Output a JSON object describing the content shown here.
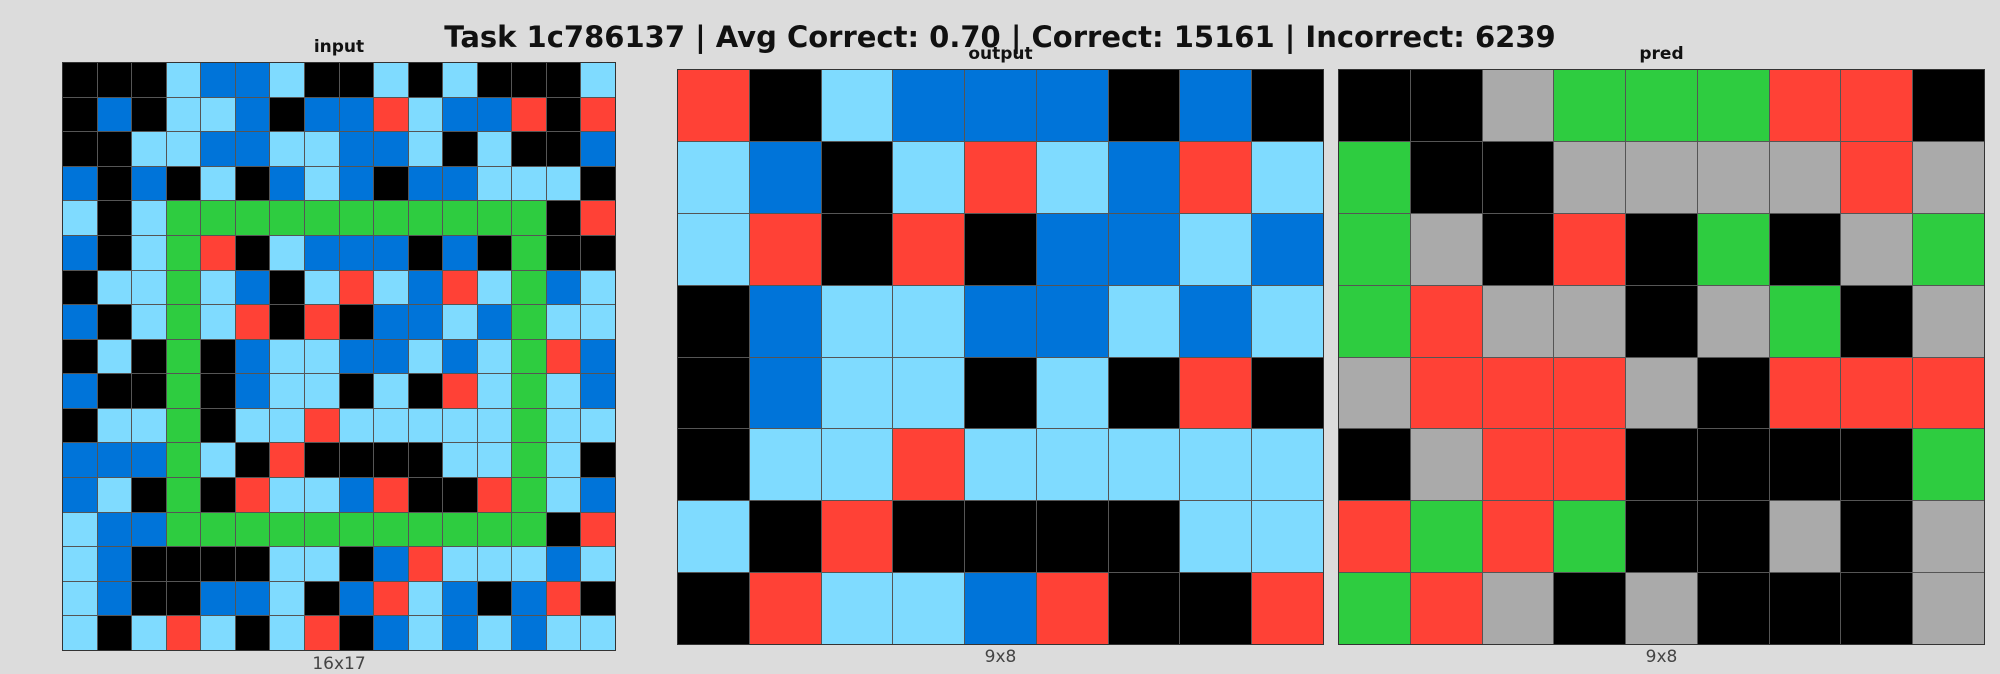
{
  "title": "Task 1c786137 | Avg Correct: 0.70 | Correct: 15161 | Incorrect: 6239",
  "colors": {
    "0": "#000000",
    "1": "#0074d9",
    "2": "#ff4136",
    "3": "#2ecc40",
    "5": "#aaaaaa",
    "8": "#7fdbff"
  },
  "panels": [
    {
      "label": "input",
      "dims": "16x17",
      "grid": [
        [
          0,
          0,
          0,
          8,
          1,
          1,
          8,
          0,
          0,
          8,
          0,
          8,
          0,
          0,
          0,
          8
        ],
        [
          0,
          1,
          0,
          8,
          8,
          1,
          0,
          1,
          1,
          2,
          8,
          1,
          1,
          2,
          0,
          2
        ],
        [
          0,
          0,
          8,
          8,
          1,
          1,
          8,
          8,
          1,
          1,
          8,
          0,
          8,
          0,
          0,
          1
        ],
        [
          1,
          0,
          1,
          0,
          8,
          0,
          1,
          8,
          1,
          0,
          1,
          1,
          8,
          8,
          8,
          0
        ],
        [
          8,
          0,
          8,
          3,
          3,
          3,
          3,
          3,
          3,
          3,
          3,
          3,
          3,
          3,
          0,
          2
        ],
        [
          1,
          0,
          8,
          3,
          2,
          0,
          8,
          1,
          1,
          1,
          0,
          1,
          0,
          3,
          0,
          0
        ],
        [
          0,
          8,
          8,
          3,
          8,
          1,
          0,
          8,
          2,
          8,
          1,
          2,
          8,
          3,
          1,
          8
        ],
        [
          1,
          0,
          8,
          3,
          8,
          2,
          0,
          2,
          0,
          1,
          1,
          8,
          1,
          3,
          8,
          8
        ],
        [
          0,
          8,
          0,
          3,
          0,
          1,
          8,
          8,
          1,
          1,
          8,
          1,
          8,
          3,
          2,
          1
        ],
        [
          1,
          0,
          0,
          3,
          0,
          1,
          8,
          8,
          0,
          8,
          0,
          2,
          8,
          3,
          8,
          1
        ],
        [
          0,
          8,
          8,
          3,
          0,
          8,
          8,
          2,
          8,
          8,
          8,
          8,
          8,
          3,
          8,
          8
        ],
        [
          1,
          1,
          1,
          3,
          8,
          0,
          2,
          0,
          0,
          0,
          0,
          8,
          8,
          3,
          8,
          0
        ],
        [
          1,
          8,
          0,
          3,
          0,
          2,
          8,
          8,
          1,
          2,
          0,
          0,
          2,
          3,
          8,
          1
        ],
        [
          8,
          1,
          1,
          3,
          3,
          3,
          3,
          3,
          3,
          3,
          3,
          3,
          3,
          3,
          0,
          2
        ],
        [
          8,
          1,
          0,
          0,
          0,
          0,
          8,
          8,
          0,
          1,
          2,
          8,
          8,
          8,
          1,
          8
        ],
        [
          8,
          1,
          0,
          0,
          1,
          1,
          8,
          0,
          1,
          2,
          8,
          1,
          0,
          1,
          2,
          0
        ],
        [
          8,
          0,
          8,
          2,
          8,
          0,
          8,
          2,
          0,
          1,
          8,
          1,
          8,
          1,
          8,
          8
        ]
      ]
    },
    {
      "label": "output",
      "dims": "9x8",
      "grid": [
        [
          2,
          0,
          8,
          1,
          1,
          1,
          0,
          1,
          0
        ],
        [
          8,
          1,
          0,
          8,
          2,
          8,
          1,
          2,
          8
        ],
        [
          8,
          2,
          0,
          2,
          0,
          1,
          1,
          8,
          1
        ],
        [
          0,
          1,
          8,
          8,
          1,
          1,
          8,
          1,
          8
        ],
        [
          0,
          1,
          8,
          8,
          0,
          8,
          0,
          2,
          0
        ],
        [
          0,
          8,
          8,
          2,
          8,
          8,
          8,
          8,
          8
        ],
        [
          8,
          0,
          2,
          0,
          0,
          0,
          0,
          8,
          8
        ],
        [
          0,
          2,
          8,
          8,
          1,
          2,
          0,
          0,
          2
        ]
      ]
    },
    {
      "label": "pred",
      "dims": "9x8",
      "grid": [
        [
          0,
          0,
          5,
          3,
          3,
          3,
          2,
          2,
          0
        ],
        [
          3,
          0,
          0,
          5,
          5,
          5,
          5,
          2,
          5
        ],
        [
          3,
          5,
          0,
          2,
          0,
          3,
          0,
          5,
          3
        ],
        [
          3,
          2,
          5,
          5,
          0,
          5,
          3,
          0,
          5
        ],
        [
          5,
          2,
          2,
          2,
          5,
          0,
          2,
          2,
          2
        ],
        [
          0,
          5,
          2,
          2,
          0,
          0,
          0,
          0,
          3
        ],
        [
          2,
          3,
          2,
          3,
          0,
          0,
          5,
          0,
          5
        ],
        [
          3,
          2,
          5,
          0,
          5,
          0,
          0,
          0,
          5
        ]
      ]
    }
  ]
}
